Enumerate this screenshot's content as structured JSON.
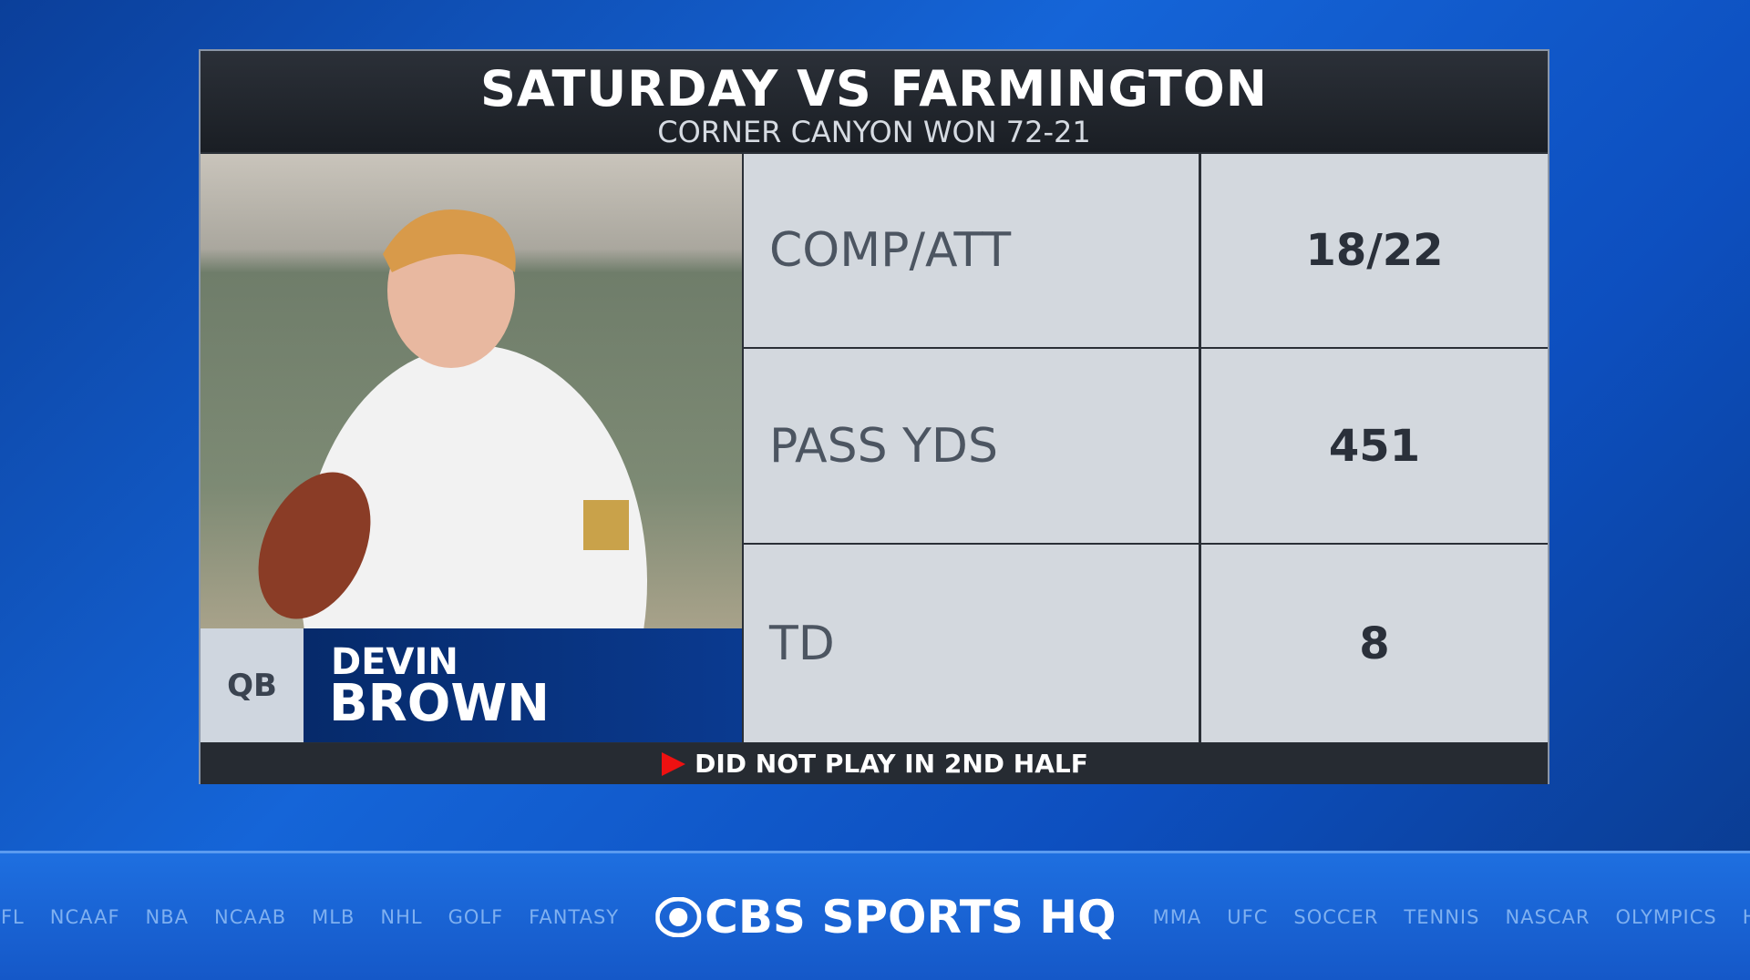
{
  "header": {
    "title": "SATURDAY VS FARMINGTON",
    "subtitle": "CORNER CANYON WON 72-21"
  },
  "player": {
    "position": "QB",
    "first_name": "DEVIN",
    "last_name": "BROWN"
  },
  "stats": [
    {
      "label": "COMP/ATT",
      "value": "18/22"
    },
    {
      "label": "PASS YDS",
      "value": "451"
    },
    {
      "label": "TD",
      "value": "8"
    }
  ],
  "note": "DID NOT PLAY IN 2ND HALF",
  "ticker": {
    "left": [
      "NFL",
      "NCAAF",
      "NBA",
      "NCAAB",
      "MLB",
      "NHL",
      "GOLF",
      "FANTASY"
    ],
    "logo": "CBS SPORTS HQ",
    "right": [
      "MMA",
      "UFC",
      "SOCCER",
      "TENNIS",
      "NASCAR",
      "OLYMPICS",
      "HI"
    ]
  }
}
